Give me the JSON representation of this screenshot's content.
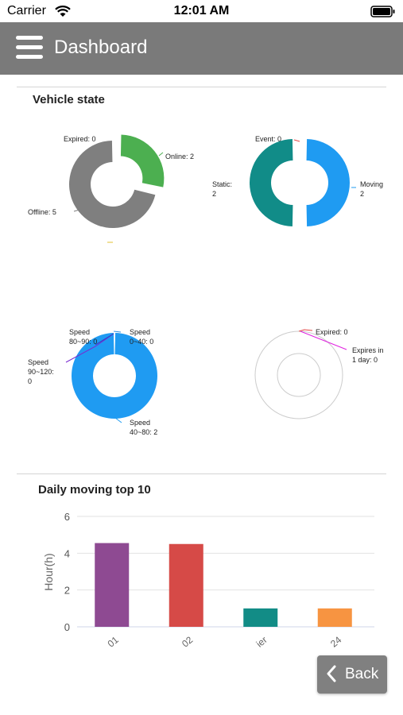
{
  "status": {
    "carrier": "Carrier",
    "time": "12:01 AM"
  },
  "header": {
    "title": "Dashboard"
  },
  "sections": {
    "vehicle_state": "Vehicle state",
    "daily_moving": "Daily moving top 10"
  },
  "back_label": "Back",
  "chart_data": [
    {
      "type": "pie",
      "variant": "donut",
      "labels": [
        [
          "Expired: 0"
        ],
        [
          "Online: 2"
        ],
        [
          "Offline: 5"
        ]
      ],
      "values": [
        0,
        2,
        5
      ],
      "colors": [
        "#e0c030",
        "#4caf50",
        "#7f7f7f"
      ]
    },
    {
      "type": "pie",
      "variant": "donut",
      "labels": [
        [
          "Event: 0"
        ],
        [
          "Moving",
          "2"
        ],
        [
          "Static:",
          "2"
        ]
      ],
      "values": [
        0,
        2,
        2
      ],
      "colors": [
        "#e34747",
        "#1f9bf2",
        "#118c88"
      ]
    },
    {
      "type": "pie",
      "variant": "donut",
      "labels": [
        [
          "Speed",
          "0~40: 0"
        ],
        [
          "Speed",
          "40~80: 2"
        ],
        [
          "Speed",
          "90~120:",
          "0"
        ],
        [
          "Speed",
          "80~90: 0"
        ]
      ],
      "values": [
        0,
        2,
        0,
        0
      ],
      "colors": [
        "#2f8fe0",
        "#1f9bf2",
        "#7a2ad0",
        "#3340c8"
      ]
    },
    {
      "type": "pie",
      "variant": "donut",
      "labels": [
        [
          "Expired: 0"
        ],
        [
          "Expires in",
          "1 day: 0"
        ]
      ],
      "values": [
        0,
        0
      ],
      "colors": [
        "#e34747",
        "#e020e0"
      ]
    },
    {
      "type": "bar",
      "categories": [
        "01",
        "02",
        "ier",
        "24"
      ],
      "values": [
        4.55,
        4.5,
        1.0,
        1.0
      ],
      "colors": [
        "#8e4a92",
        "#d64a47",
        "#128c86",
        "#f79441"
      ],
      "ylabel": "Hour(h)",
      "ylim": [
        0,
        6
      ],
      "yticks": [
        "0",
        "2",
        "4",
        "6"
      ],
      "grid": true
    }
  ]
}
